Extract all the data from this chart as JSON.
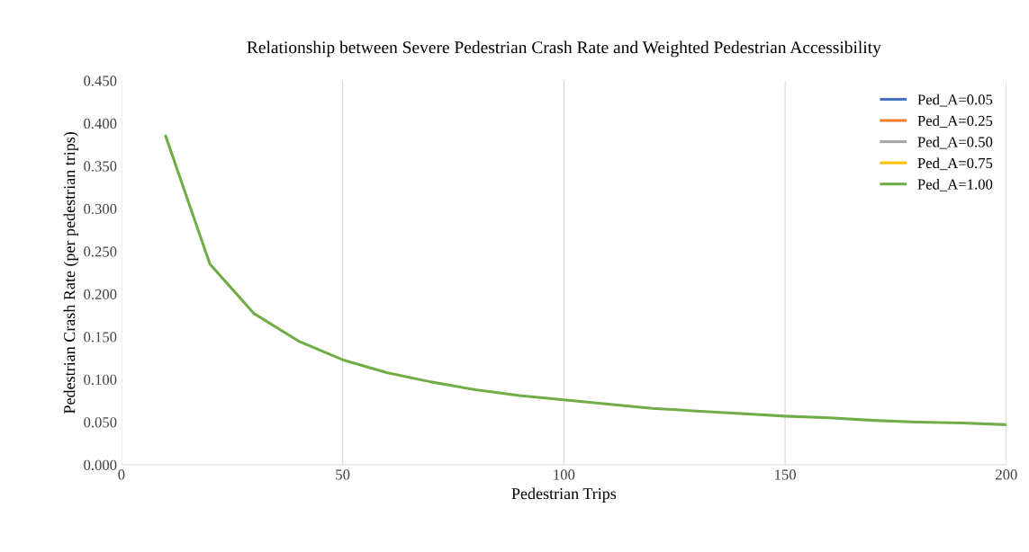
{
  "chart_data": {
    "type": "line",
    "title": "Relationship between Severe Pedestrian Crash Rate and Weighted Pedestrian Accessibility",
    "xlabel": "Pedestrian Trips",
    "ylabel": "Pedestrian Crash Rate (per pedestrian trips)",
    "x": [
      10,
      20,
      30,
      40,
      50,
      60,
      70,
      80,
      90,
      100,
      110,
      120,
      130,
      140,
      150,
      160,
      170,
      180,
      190,
      200
    ],
    "series": [
      {
        "name": "Ped_A=0.05",
        "color": "#4472c4",
        "values": [
          null,
          null,
          null,
          null,
          null,
          null,
          null,
          null,
          null,
          null,
          null,
          null,
          null,
          null,
          null,
          null,
          null,
          null,
          null,
          null
        ]
      },
      {
        "name": "Ped_A=0.25",
        "color": "#ed7d31",
        "values": [
          null,
          null,
          null,
          null,
          null,
          null,
          null,
          null,
          null,
          null,
          null,
          null,
          null,
          null,
          null,
          null,
          null,
          null,
          null,
          null
        ]
      },
      {
        "name": "Ped_A=0.50",
        "color": "#a5a5a5",
        "values": [
          null,
          null,
          null,
          null,
          null,
          null,
          null,
          null,
          null,
          null,
          null,
          null,
          null,
          null,
          null,
          null,
          null,
          null,
          null,
          null
        ]
      },
      {
        "name": "Ped_A=0.75",
        "color": "#ffc000",
        "values": [
          null,
          null,
          null,
          null,
          null,
          null,
          null,
          null,
          null,
          null,
          null,
          null,
          null,
          null,
          null,
          null,
          null,
          null,
          null,
          null
        ]
      },
      {
        "name": "Ped_A=1.00",
        "color": "#70ad47",
        "values": [
          0.385,
          0.235,
          0.177,
          0.145,
          0.123,
          0.108,
          0.097,
          0.088,
          0.081,
          0.076,
          0.071,
          0.066,
          0.063,
          0.06,
          0.057,
          0.055,
          0.052,
          0.05,
          0.049,
          0.047
        ]
      }
    ],
    "xlim": [
      0,
      200
    ],
    "xticks": [
      0,
      50,
      100,
      150,
      200
    ],
    "ylim": [
      0,
      0.45
    ],
    "yticks": [
      {
        "value": 0,
        "label": "0.000"
      },
      {
        "value": 0.05,
        "label": "0.050"
      },
      {
        "value": 0.1,
        "label": "0.100"
      },
      {
        "value": 0.15,
        "label": "0.150"
      },
      {
        "value": 0.2,
        "label": "0.200"
      },
      {
        "value": 0.25,
        "label": "0.250"
      },
      {
        "value": 0.3,
        "label": "0.300"
      },
      {
        "value": 0.35,
        "label": "0.350"
      },
      {
        "value": 0.4,
        "label": "0.400"
      },
      {
        "value": 0.45,
        "label": "0.450"
      }
    ],
    "grid": "x",
    "legend": "top right",
    "line_style": "solid"
  }
}
